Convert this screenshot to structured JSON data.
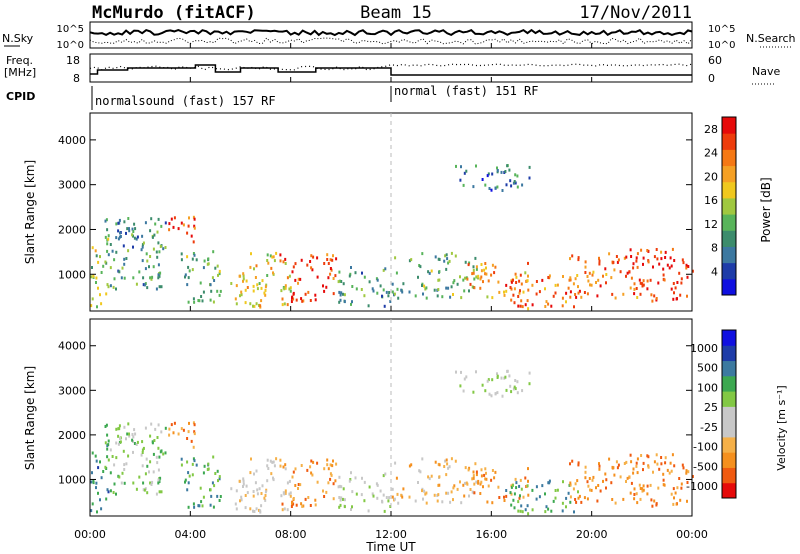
{
  "header": {
    "station": "McMurdo (fitACF)",
    "beam": "Beam 15",
    "date": "17/Nov/2011"
  },
  "noise_panel": {
    "left_label": "N.Sky",
    "right_label": "N.Search",
    "left_ticks": [
      "10^5",
      "10^0"
    ],
    "right_ticks": [
      "10^5",
      "10^0"
    ]
  },
  "freq_panel": {
    "left_label_line1": "Freq.",
    "left_label_line2": "[MHz]",
    "left_ticks": [
      "18",
      "8"
    ],
    "right_label": "Nave",
    "right_ticks": [
      "60",
      "0"
    ]
  },
  "cpid": {
    "label": "CPID",
    "segments": [
      {
        "text": "normalsound (fast) 157 RF",
        "start_hour": 0
      },
      {
        "text": "normal (fast) 151 RF",
        "start_hour": 12
      }
    ]
  },
  "colors": {
    "power": [
      "#1010e0",
      "#1e3ca8",
      "#3c78a0",
      "#3c8c6c",
      "#58b45a",
      "#a0c840",
      "#f0c81e",
      "#f5a024",
      "#f57814",
      "#ee3c0c",
      "#e60a0a"
    ],
    "velocity": [
      "#e60a0a",
      "#f05a10",
      "#f5901e",
      "#f5b048",
      "#c8c8c8",
      "#c8c8c8",
      "#82c844",
      "#3ca850",
      "#3c7aa0",
      "#1e3ca8",
      "#1010e0"
    ],
    "ground_scatter": "#a0a0a0"
  },
  "chart_data": {
    "type": "heatmap",
    "x_label": "Time UT",
    "x_ticks": [
      "00:00",
      "04:00",
      "08:00",
      "12:00",
      "16:00",
      "20:00",
      "00:00"
    ],
    "x_range_hours": [
      0,
      24
    ],
    "y_label": "Slant Range [km]",
    "y_ticks": [
      1000,
      2000,
      3000,
      4000
    ],
    "y_range_km": [
      180,
      4600
    ],
    "power_colorbar": {
      "label": "Power [dB]",
      "ticks": [
        "4",
        "8",
        "12",
        "16",
        "20",
        "24",
        "28"
      ],
      "range": [
        0,
        30
      ]
    },
    "velocity_colorbar": {
      "label": "Velocity [m s⁻¹]",
      "ticks": [
        "1000",
        "500",
        "100",
        "25",
        "-25",
        "-100",
        "-500",
        "-1000"
      ]
    },
    "scatter_regions": [
      {
        "t0": 0.0,
        "t1": 0.7,
        "r0": 250,
        "r1": 1900,
        "power": 14,
        "vel": 8
      },
      {
        "t0": 0.5,
        "t1": 3.0,
        "r0": 700,
        "r1": 2300,
        "power": 10,
        "vel": 6
      },
      {
        "t0": 1.0,
        "t1": 2.6,
        "r0": 1800,
        "r1": 2300,
        "power": 7,
        "vel": 5
      },
      {
        "t0": 3.0,
        "t1": 4.2,
        "r0": 1700,
        "r1": 2350,
        "power": 26,
        "vel": 2
      },
      {
        "t0": 3.5,
        "t1": 5.2,
        "r0": 400,
        "r1": 1600,
        "power": 12,
        "vel": 7
      },
      {
        "t0": 5.5,
        "t1": 8.0,
        "r0": 300,
        "r1": 1500,
        "power": 18,
        "vel": 4
      },
      {
        "t0": 7.5,
        "t1": 9.8,
        "r0": 400,
        "r1": 1500,
        "power": 27,
        "vel": 2
      },
      {
        "t0": 9.8,
        "t1": 12.0,
        "r0": 300,
        "r1": 1200,
        "power": 9,
        "vel": 5
      },
      {
        "t0": 12.0,
        "t1": 15.5,
        "r0": 500,
        "r1": 1500,
        "power": 11,
        "vel": 3
      },
      {
        "t0": 15.0,
        "t1": 17.5,
        "r0": 500,
        "r1": 1300,
        "power": 22,
        "vel": 2
      },
      {
        "t0": 16.5,
        "t1": 19.5,
        "r0": 250,
        "r1": 1000,
        "power": 25,
        "vel": 7
      },
      {
        "t0": 19.0,
        "t1": 22.0,
        "r0": 500,
        "r1": 1500,
        "power": 24,
        "vel": 2
      },
      {
        "t0": 21.5,
        "t1": 24.0,
        "r0": 400,
        "r1": 1600,
        "power": 28,
        "vel": 2
      },
      {
        "t0": 14.5,
        "t1": 17.5,
        "r0": 2900,
        "r1": 3500,
        "power": 6,
        "vel": 5
      }
    ]
  }
}
